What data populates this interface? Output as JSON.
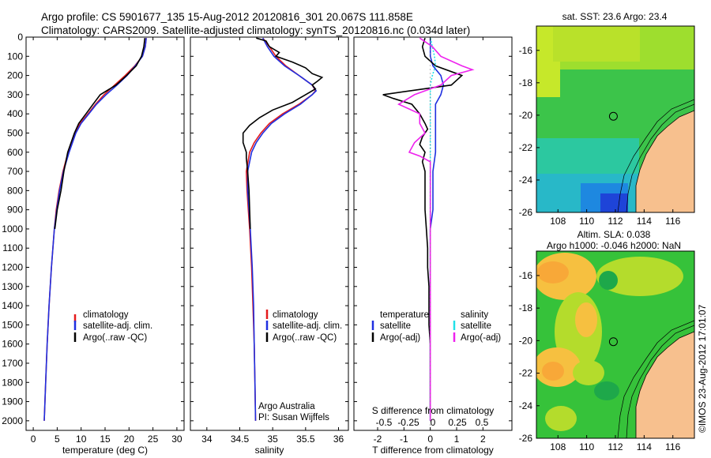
{
  "header": {
    "line1": "Argo profile: CS 5901677_135 15-Aug-2012 20120816_301 20.067S 111.858E",
    "line2": "Climatology: CARS2009. Satellite-adjusted climatology: synTS_20120816.nc (0.034d later)"
  },
  "colors": {
    "climatology": "#e41a1c",
    "satellite": "#1f2fe0",
    "argo": "#000000",
    "satellite_salinity": "#22e0e8",
    "argo_salinity": "#ee22ee",
    "land": "#f7c08e"
  },
  "chart_data": [
    {
      "type": "line",
      "id": "temperature",
      "xlabel": "temperature (deg C)",
      "ylabel": "",
      "xlim": [
        -1.5,
        31.5
      ],
      "ylim": [
        2050,
        0
      ],
      "x_ticks": [
        "0",
        "5",
        "10",
        "15",
        "20",
        "25",
        "30"
      ],
      "y_ticks": [
        "0",
        "100",
        "200",
        "300",
        "400",
        "500",
        "600",
        "700",
        "800",
        "900",
        "1000",
        "1100",
        "1200",
        "1300",
        "1400",
        "1500",
        "1600",
        "1700",
        "1800",
        "1900",
        "2000"
      ],
      "legend": [
        "climatology",
        "satellite-adj. clim.",
        "Argo(..raw -QC)"
      ],
      "series": [
        {
          "name": "climatology",
          "depth": [
            5,
            50,
            100,
            150,
            200,
            250,
            300,
            350,
            400,
            450,
            500,
            600,
            700,
            800,
            900,
            1000,
            1200,
            1400,
            1600,
            1800,
            2000
          ],
          "values": [
            23.6,
            23.4,
            22.8,
            21.2,
            19.2,
            17.0,
            14.8,
            13.0,
            11.4,
            9.8,
            8.7,
            7.3,
            6.2,
            5.4,
            4.8,
            4.4,
            3.8,
            3.3,
            2.9,
            2.6,
            2.3
          ]
        },
        {
          "name": "satellite-adj. clim.",
          "depth": [
            5,
            50,
            100,
            150,
            200,
            250,
            300,
            350,
            400,
            450,
            500,
            600,
            700,
            800,
            900,
            1000,
            1200,
            1400,
            1600,
            1800,
            2000
          ],
          "values": [
            23.6,
            23.4,
            22.8,
            21.3,
            19.6,
            17.5,
            15.2,
            13.2,
            11.6,
            10.0,
            8.9,
            7.5,
            6.3,
            5.5,
            4.9,
            4.4,
            3.8,
            3.3,
            2.9,
            2.6,
            2.3
          ]
        },
        {
          "name": "Argo(..raw -QC)",
          "depth": [
            5,
            50,
            100,
            150,
            200,
            250,
            300,
            350,
            400,
            450,
            500,
            600,
            650,
            700,
            800,
            900,
            1000
          ],
          "values": [
            23.3,
            23.1,
            22.6,
            21.5,
            19.5,
            17.3,
            14.0,
            12.5,
            11.0,
            9.5,
            8.6,
            7.2,
            6.8,
            6.4,
            5.8,
            5.0,
            4.5
          ]
        }
      ]
    },
    {
      "type": "line",
      "id": "salinity",
      "xlabel": "salinity",
      "ylabel": "",
      "xlim": [
        33.75,
        36.15
      ],
      "ylim": [
        2050,
        0
      ],
      "x_ticks": [
        "34",
        "34.5",
        "35",
        "35.5",
        "36"
      ],
      "legend": [
        "climatology",
        "satellite-adj. clim.",
        "Argo(..raw -QC)"
      ],
      "annotations": [
        "Argo Australia",
        "PI: Susan Wijffels"
      ],
      "series": [
        {
          "name": "climatology",
          "depth": [
            5,
            50,
            100,
            150,
            200,
            250,
            280,
            300,
            350,
            400,
            450,
            500,
            550,
            600,
            700,
            800,
            900,
            1000,
            1200,
            1400,
            1600,
            1800,
            2000
          ],
          "values": [
            34.85,
            34.95,
            35.05,
            35.2,
            35.4,
            35.6,
            35.65,
            35.6,
            35.4,
            35.15,
            34.95,
            34.82,
            34.72,
            34.65,
            34.6,
            34.61,
            34.63,
            34.65,
            34.68,
            34.7,
            34.72,
            34.73,
            34.74
          ]
        },
        {
          "name": "satellite-adj. clim.",
          "depth": [
            5,
            50,
            100,
            150,
            200,
            250,
            280,
            300,
            350,
            400,
            450,
            500,
            550,
            600,
            700,
            800,
            900,
            1000,
            1200,
            1400,
            1600,
            1800,
            2000
          ],
          "values": [
            34.85,
            34.92,
            35.02,
            35.18,
            35.4,
            35.6,
            35.66,
            35.6,
            35.42,
            35.18,
            34.98,
            34.85,
            34.75,
            34.68,
            34.62,
            34.62,
            34.64,
            34.66,
            34.69,
            34.71,
            34.72,
            34.73,
            34.74
          ]
        },
        {
          "name": "Argo(..raw -QC)",
          "depth": [
            5,
            20,
            50,
            80,
            100,
            130,
            160,
            190,
            210,
            230,
            250,
            270,
            300,
            340,
            380,
            420,
            460,
            500,
            550,
            600,
            630,
            700,
            800,
            900,
            1000
          ],
          "values": [
            34.75,
            34.9,
            34.95,
            35.1,
            35.05,
            35.3,
            35.5,
            35.6,
            35.75,
            35.68,
            35.6,
            35.65,
            35.5,
            35.3,
            35.0,
            34.8,
            34.65,
            34.55,
            34.55,
            34.6,
            34.6,
            34.62,
            34.64,
            34.65,
            34.66
          ]
        }
      ]
    },
    {
      "type": "line",
      "id": "difference",
      "xlabel": "T difference from climatology",
      "xlabel_top": "S difference from climatology",
      "ylabel": "",
      "xlim": [
        -2.9,
        3.1
      ],
      "ylim": [
        2050,
        0
      ],
      "x_ticks": [
        "-2",
        "-1",
        "0",
        "1",
        "2"
      ],
      "x_ticks_salinity": [
        "-0.5",
        "-0.25",
        "0",
        "0.25",
        "0.5"
      ],
      "legend_titles": [
        "temperature",
        "salinity"
      ],
      "legend": [
        "satellite",
        "Argo(-adj)",
        "satellite",
        "Argo(-adj)"
      ],
      "series": [
        {
          "name": "temperature satellite",
          "depth": [
            5,
            50,
            100,
            150,
            200,
            250,
            300,
            350,
            400,
            450,
            500,
            600,
            700,
            800,
            900,
            1000,
            1200,
            1400,
            1600,
            1800,
            2000
          ],
          "values": [
            0,
            0,
            0,
            0.1,
            0.4,
            0.5,
            0.4,
            0.2,
            0.2,
            0.2,
            0.2,
            0.2,
            0.1,
            0.1,
            0.1,
            0,
            0,
            0,
            0,
            0,
            0
          ]
        },
        {
          "name": "temperature Argo(-adj)",
          "depth": [
            5,
            50,
            100,
            150,
            200,
            250,
            300,
            320,
            350,
            400,
            450,
            480,
            520,
            560,
            600,
            650,
            700,
            800,
            900,
            1000,
            1100,
            1200,
            1300,
            1400,
            1500,
            1600,
            1700,
            1800,
            1900,
            1950
          ],
          "values": [
            -0.2,
            -0.3,
            -0.2,
            0.2,
            1.2,
            0.8,
            -1.8,
            -1.4,
            -0.7,
            -0.4,
            -0.2,
            -0.1,
            -0.3,
            -0.4,
            -0.2,
            -0.3,
            -0.2,
            -0.2,
            -0.2,
            -0.15,
            -0.1,
            -0.1,
            -0.05,
            -0.05,
            -0.05,
            0,
            0,
            0,
            0,
            0
          ]
        },
        {
          "name": "salinity satellite",
          "depth": [
            5,
            50,
            100,
            150,
            200,
            250,
            300,
            400,
            500,
            600,
            700,
            800,
            900,
            1000,
            1200,
            1400,
            1600,
            1800,
            2000
          ],
          "values": [
            0.0,
            0.02,
            0.04,
            0.05,
            0.02,
            0.0,
            0.0,
            0.0,
            0.0,
            0.0,
            0.0,
            0.0,
            0.0,
            0.0,
            0.0,
            0.0,
            0.0,
            0.0,
            0.0
          ]
        },
        {
          "name": "salinity Argo(-adj)",
          "depth": [
            5,
            50,
            100,
            150,
            170,
            200,
            250,
            300,
            350,
            400,
            450,
            500,
            550,
            600,
            620,
            650,
            700,
            800,
            900,
            1000,
            1200,
            1400,
            1600,
            1800,
            2000
          ],
          "values": [
            -0.1,
            0.02,
            0.1,
            0.3,
            0.4,
            0.2,
            0.1,
            -0.15,
            -0.3,
            -0.1,
            -0.1,
            -0.05,
            -0.15,
            -0.2,
            -0.1,
            0.0,
            0.0,
            0.0,
            0.0,
            0.0,
            0.0,
            0.0,
            0.0,
            0.0,
            0.0
          ]
        }
      ]
    }
  ],
  "map_sst": {
    "title": "sat. SST: 23.6 Argo: 23.4",
    "x_ticks": [
      "108",
      "110",
      "112",
      "114",
      "116"
    ],
    "y_ticks": [
      "-16",
      "-18",
      "-20",
      "-22",
      "-24",
      "-26"
    ],
    "xlim": [
      106.5,
      117.5
    ],
    "ylim": [
      -26,
      -14.5
    ],
    "argo_lon": 111.858,
    "argo_lat": -20.067
  },
  "map_sla": {
    "title_line1": "Altim. SLA: 0.038",
    "title_line2": "Argo h1000: -0.046 h2000: NaN",
    "x_ticks": [
      "108",
      "110",
      "112",
      "114",
      "116"
    ],
    "y_ticks": [
      "-16",
      "-18",
      "-20",
      "-22",
      "-24",
      "-26"
    ],
    "xlim": [
      106.5,
      117.5
    ],
    "ylim": [
      -26,
      -14.5
    ],
    "argo_lon": 111.858,
    "argo_lat": -20.067
  },
  "stamp": "©IMOS 23-Aug-2012 17:01:07"
}
